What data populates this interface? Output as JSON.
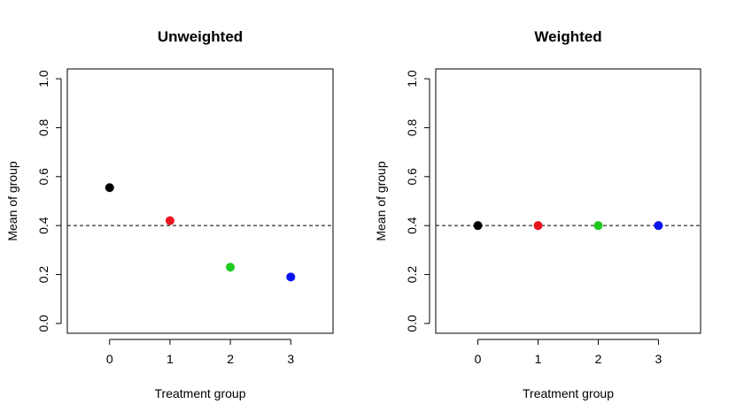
{
  "chart_data": [
    {
      "type": "scatter",
      "title": "Unweighted",
      "xlabel": "Treatment group",
      "ylabel": "Mean of group",
      "x": [
        0,
        1,
        2,
        3
      ],
      "x_tick_labels": [
        "0",
        "1",
        "2",
        "3"
      ],
      "y": [
        0.555,
        0.42,
        0.23,
        0.19
      ],
      "colors": [
        "#000000",
        "#e8141d",
        "#1ecb1e",
        "#0a14f0"
      ],
      "y_ticks": [
        0.0,
        0.2,
        0.4,
        0.6,
        0.8,
        1.0
      ],
      "y_tick_labels": [
        "0.0",
        "0.2",
        "0.4",
        "0.6",
        "0.8",
        "1.0"
      ],
      "xlim": [
        -0.7,
        3.7
      ],
      "ylim": [
        -0.04,
        1.04
      ],
      "reference_line": {
        "y": 0.4,
        "style": "dashed"
      },
      "grid": false
    },
    {
      "type": "scatter",
      "title": "Weighted",
      "xlabel": "Treatment group",
      "ylabel": "Mean of group",
      "x": [
        0,
        1,
        2,
        3
      ],
      "x_tick_labels": [
        "0",
        "1",
        "2",
        "3"
      ],
      "y": [
        0.4,
        0.4,
        0.4,
        0.4
      ],
      "colors": [
        "#000000",
        "#e8141d",
        "#1ecb1e",
        "#0a14f0"
      ],
      "y_ticks": [
        0.0,
        0.2,
        0.4,
        0.6,
        0.8,
        1.0
      ],
      "y_tick_labels": [
        "0.0",
        "0.2",
        "0.4",
        "0.6",
        "0.8",
        "1.0"
      ],
      "xlim": [
        -0.7,
        3.7
      ],
      "ylim": [
        -0.04,
        1.04
      ],
      "reference_line": {
        "y": 0.4,
        "style": "dashed"
      },
      "grid": false
    }
  ]
}
